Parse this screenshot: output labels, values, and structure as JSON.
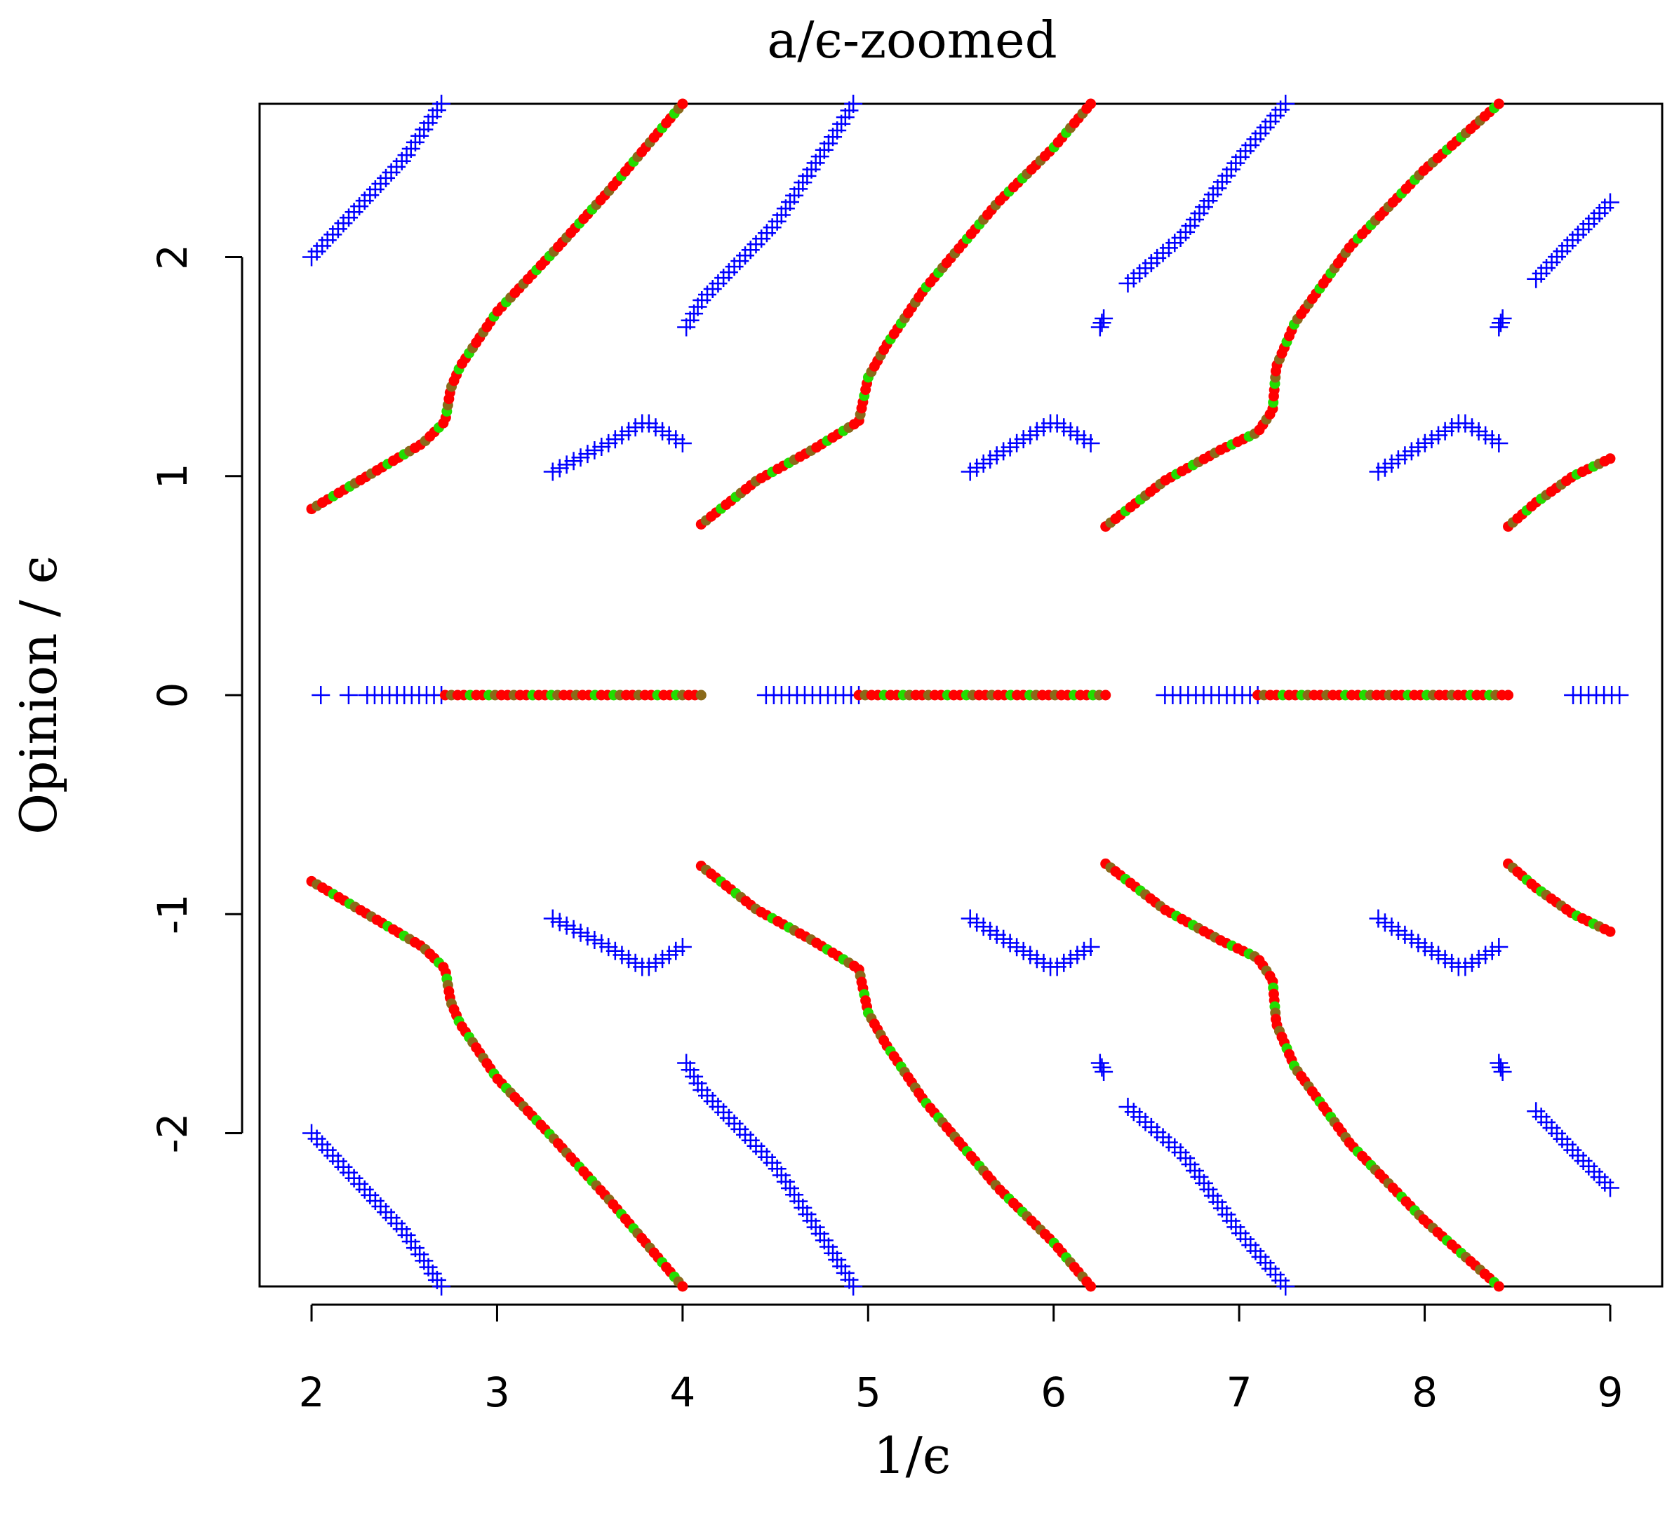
{
  "chart_data": {
    "type": "scatter",
    "title": "a/ϵ-zoomed",
    "xlabel": "1/ϵ",
    "ylabel": "Opinion / ϵ",
    "xlim": [
      1.72,
      9.28
    ],
    "ylim": [
      -2.7,
      2.7
    ],
    "xticks": [
      "2",
      "3",
      "4",
      "5",
      "6",
      "7",
      "8",
      "9"
    ],
    "yticks": [
      "-2",
      "-1",
      "0",
      "1",
      "2"
    ],
    "grid": false,
    "legend": "none",
    "colors": {
      "plus": "#0000ff",
      "dot_red": "#ff0000",
      "dot_green": "#22dd00",
      "dot_brown": "#8a6a1a",
      "axis": "#000000"
    },
    "series": [
      {
        "marker": "plus",
        "segments": [
          {
            "points": [
              [
                2.0,
                2.0
              ],
              [
                2.3,
                2.27
              ],
              [
                2.5,
                2.45
              ],
              [
                2.7,
                2.7
              ]
            ]
          },
          {
            "points": [
              [
                2.0,
                -2.0
              ],
              [
                2.3,
                -2.27
              ],
              [
                2.5,
                -2.45
              ],
              [
                2.7,
                -2.7
              ]
            ]
          },
          {
            "points": [
              [
                3.3,
                1.02
              ],
              [
                3.6,
                1.15
              ],
              [
                3.8,
                1.25
              ],
              [
                4.0,
                1.15
              ]
            ]
          },
          {
            "points": [
              [
                3.3,
                -1.02
              ],
              [
                3.6,
                -1.15
              ],
              [
                3.8,
                -1.25
              ],
              [
                4.0,
                -1.15
              ]
            ]
          },
          {
            "points": [
              [
                4.02,
                1.68
              ],
              [
                4.1,
                1.8
              ],
              [
                4.5,
                2.15
              ],
              [
                4.85,
                2.6
              ],
              [
                4.92,
                2.7
              ]
            ]
          },
          {
            "points": [
              [
                4.02,
                -1.68
              ],
              [
                4.1,
                -1.8
              ],
              [
                4.5,
                -2.15
              ],
              [
                4.85,
                -2.6
              ],
              [
                4.92,
                -2.7
              ]
            ]
          },
          {
            "points": [
              [
                5.55,
                1.02
              ],
              [
                5.8,
                1.15
              ],
              [
                6.0,
                1.25
              ],
              [
                6.2,
                1.15
              ]
            ]
          },
          {
            "points": [
              [
                5.55,
                -1.02
              ],
              [
                5.8,
                -1.15
              ],
              [
                6.0,
                -1.25
              ],
              [
                6.2,
                -1.15
              ]
            ]
          },
          {
            "points": [
              [
                6.25,
                1.68
              ],
              [
                6.27,
                1.72
              ]
            ]
          },
          {
            "points": [
              [
                6.25,
                -1.68
              ],
              [
                6.27,
                -1.72
              ]
            ]
          },
          {
            "points": [
              [
                6.4,
                1.88
              ],
              [
                6.7,
                2.1
              ],
              [
                7.0,
                2.45
              ],
              [
                7.25,
                2.7
              ]
            ]
          },
          {
            "points": [
              [
                6.4,
                -1.88
              ],
              [
                6.7,
                -2.1
              ],
              [
                7.0,
                -2.45
              ],
              [
                7.25,
                -2.7
              ]
            ]
          },
          {
            "points": [
              [
                7.75,
                1.02
              ],
              [
                8.0,
                1.15
              ],
              [
                8.2,
                1.25
              ],
              [
                8.4,
                1.15
              ]
            ]
          },
          {
            "points": [
              [
                7.75,
                -1.02
              ],
              [
                8.0,
                -1.15
              ],
              [
                8.2,
                -1.25
              ],
              [
                8.4,
                -1.15
              ]
            ]
          },
          {
            "points": [
              [
                8.4,
                1.68
              ],
              [
                8.42,
                1.72
              ]
            ]
          },
          {
            "points": [
              [
                8.4,
                -1.68
              ],
              [
                8.42,
                -1.72
              ]
            ]
          },
          {
            "points": [
              [
                8.6,
                1.9
              ],
              [
                8.8,
                2.08
              ],
              [
                9.0,
                2.25
              ]
            ]
          },
          {
            "points": [
              [
                8.6,
                -1.9
              ],
              [
                8.8,
                -2.08
              ],
              [
                9.0,
                -2.25
              ]
            ]
          },
          {
            "points": [
              [
                2.05,
                0.0
              ]
            ]
          },
          {
            "points": [
              [
                2.2,
                0.0
              ]
            ]
          },
          {
            "points": [
              [
                2.3,
                0.0
              ],
              [
                2.7,
                0.0
              ]
            ]
          },
          {
            "points": [
              [
                4.45,
                0.0
              ],
              [
                4.95,
                0.0
              ]
            ]
          },
          {
            "points": [
              [
                6.6,
                0.0
              ],
              [
                7.1,
                0.0
              ]
            ]
          },
          {
            "points": [
              [
                8.8,
                0.0
              ],
              [
                9.05,
                0.0
              ]
            ]
          }
        ]
      },
      {
        "marker": "dot",
        "segments": [
          {
            "color": "mixed",
            "points": [
              [
                2.0,
                0.85
              ],
              [
                2.2,
                0.95
              ],
              [
                2.4,
                1.05
              ],
              [
                2.6,
                1.15
              ],
              [
                2.72,
                1.25
              ],
              [
                2.75,
                1.4
              ],
              [
                2.8,
                1.5
              ],
              [
                3.0,
                1.75
              ],
              [
                3.3,
                2.02
              ],
              [
                3.6,
                2.3
              ],
              [
                4.0,
                2.7
              ]
            ]
          },
          {
            "color": "mixed",
            "points": [
              [
                2.0,
                -0.85
              ],
              [
                2.2,
                -0.95
              ],
              [
                2.4,
                -1.05
              ],
              [
                2.6,
                -1.15
              ],
              [
                2.72,
                -1.25
              ],
              [
                2.75,
                -1.4
              ],
              [
                2.8,
                -1.5
              ],
              [
                3.0,
                -1.75
              ],
              [
                3.3,
                -2.02
              ],
              [
                3.6,
                -2.3
              ],
              [
                4.0,
                -2.7
              ]
            ]
          },
          {
            "color": "mixed",
            "points": [
              [
                4.1,
                0.78
              ],
              [
                4.4,
                0.98
              ],
              [
                4.7,
                1.12
              ],
              [
                4.95,
                1.25
              ],
              [
                5.0,
                1.45
              ],
              [
                5.1,
                1.6
              ],
              [
                5.3,
                1.85
              ],
              [
                5.7,
                2.25
              ],
              [
                6.0,
                2.5
              ],
              [
                6.2,
                2.7
              ]
            ]
          },
          {
            "color": "mixed",
            "points": [
              [
                4.1,
                -0.78
              ],
              [
                4.4,
                -0.98
              ],
              [
                4.7,
                -1.12
              ],
              [
                4.95,
                -1.25
              ],
              [
                5.0,
                -1.45
              ],
              [
                5.1,
                -1.6
              ],
              [
                5.3,
                -1.85
              ],
              [
                5.7,
                -2.25
              ],
              [
                6.0,
                -2.5
              ],
              [
                6.2,
                -2.7
              ]
            ]
          },
          {
            "color": "mixed",
            "points": [
              [
                6.28,
                0.77
              ],
              [
                6.6,
                0.98
              ],
              [
                6.9,
                1.12
              ],
              [
                7.1,
                1.2
              ],
              [
                7.18,
                1.3
              ],
              [
                7.2,
                1.5
              ],
              [
                7.3,
                1.7
              ],
              [
                7.6,
                2.05
              ],
              [
                8.0,
                2.4
              ],
              [
                8.4,
                2.7
              ]
            ]
          },
          {
            "color": "mixed",
            "points": [
              [
                6.28,
                -0.77
              ],
              [
                6.6,
                -0.98
              ],
              [
                6.9,
                -1.12
              ],
              [
                7.1,
                -1.2
              ],
              [
                7.18,
                -1.3
              ],
              [
                7.2,
                -1.5
              ],
              [
                7.3,
                -1.7
              ],
              [
                7.6,
                -2.05
              ],
              [
                8.0,
                -2.4
              ],
              [
                8.4,
                -2.7
              ]
            ]
          },
          {
            "color": "mixed",
            "points": [
              [
                8.45,
                0.77
              ],
              [
                8.6,
                0.88
              ],
              [
                8.8,
                1.0
              ],
              [
                9.0,
                1.08
              ]
            ]
          },
          {
            "color": "mixed",
            "points": [
              [
                8.45,
                -0.77
              ],
              [
                8.6,
                -0.88
              ],
              [
                8.8,
                -1.0
              ],
              [
                9.0,
                -1.08
              ]
            ]
          },
          {
            "color": "mixed",
            "points": [
              [
                2.72,
                0.0
              ],
              [
                4.1,
                0.0
              ]
            ]
          },
          {
            "color": "mixed",
            "points": [
              [
                4.95,
                0.0
              ],
              [
                6.28,
                0.0
              ]
            ]
          },
          {
            "color": "mixed",
            "points": [
              [
                7.1,
                0.0
              ],
              [
                8.45,
                0.0
              ]
            ]
          }
        ]
      }
    ]
  }
}
